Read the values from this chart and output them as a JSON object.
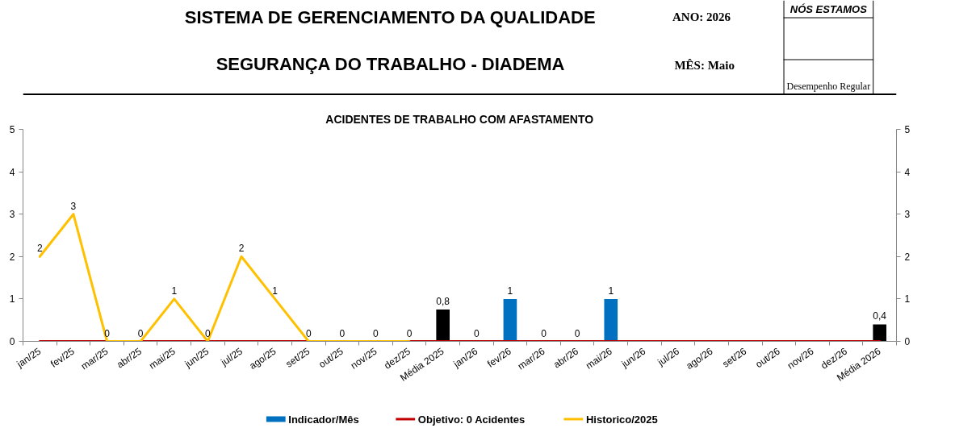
{
  "chart_data": {
    "type": "bar",
    "title": "ACIDENTES DE TRABALHO COM AFASTAMENTO",
    "annotations": [
      "SISTEMA DE GERENCIAMENTO DA QUALIDADE",
      "SEGURANÇA DO TRABALHO - DIADEMA",
      "ANO: 2026",
      "MÊS: Maio",
      "NÓS ESTAMOS",
      "Desempenho Regular"
    ],
    "categories": [
      "jan/25",
      "fev/25",
      "mar/25",
      "abr/25",
      "mai/25",
      "jun/25",
      "jul/25",
      "ago/25",
      "set/25",
      "out/25",
      "nov/25",
      "dez/25",
      "Média 2025",
      "jan/26",
      "fev/26",
      "mar/26",
      "abr/26",
      "mai/26",
      "jun/26",
      "jul/26",
      "ago/26",
      "set/26",
      "out/26",
      "nov/26",
      "dez/26",
      "Média 2026"
    ],
    "series": [
      {
        "name": "Indicador/Mês",
        "color": "#0070c0",
        "colors": [
          "#0070c0",
          "#0070c0",
          "#0070c0",
          "#0070c0",
          "#0070c0",
          "#0070c0",
          "#0070c0",
          "#0070c0",
          "#0070c0",
          "#0070c0",
          "#0070c0",
          "#0070c0",
          "#000000",
          "#0070c0",
          "#0070c0",
          "#0070c0",
          "#0070c0",
          "#0070c0",
          "#0070c0",
          "#0070c0",
          "#0070c0",
          "#0070c0",
          "#0070c0",
          "#0070c0",
          "#0070c0",
          "#000000"
        ],
        "values": [
          null,
          null,
          null,
          null,
          null,
          null,
          null,
          null,
          null,
          null,
          null,
          null,
          0.75,
          0,
          1,
          0,
          0,
          1,
          null,
          null,
          null,
          null,
          null,
          null,
          null,
          0.4
        ],
        "value_labels": [
          null,
          null,
          null,
          null,
          null,
          null,
          null,
          null,
          null,
          null,
          null,
          null,
          "0,8",
          "0",
          "1",
          "0",
          "0",
          "1",
          null,
          null,
          null,
          null,
          null,
          null,
          null,
          "0,4"
        ]
      },
      {
        "name": "Objetivo: 0 Acidentes",
        "type": "line",
        "color": "#c00000",
        "values": [
          0,
          0,
          0,
          0,
          0,
          0,
          0,
          0,
          0,
          0,
          0,
          0,
          0,
          0,
          0,
          0,
          0,
          0,
          0,
          0,
          0,
          0,
          0,
          0,
          0,
          0
        ]
      },
      {
        "name": "Historico/2025",
        "type": "line",
        "color": "#ffc000",
        "values": [
          2,
          3,
          0,
          0,
          1,
          0,
          2,
          1,
          0,
          0,
          0,
          0,
          null,
          null,
          null,
          null,
          null,
          null,
          null,
          null,
          null,
          null,
          null,
          null,
          null,
          null
        ],
        "value_labels": [
          "2",
          "3",
          "0",
          "0",
          "1",
          "0",
          "2",
          "1",
          "0",
          "0",
          "0",
          "0",
          null,
          null,
          null,
          null,
          null,
          null,
          null,
          null,
          null,
          null,
          null,
          null,
          null,
          null
        ]
      }
    ],
    "ylim": [
      0,
      5
    ],
    "yticks": [
      0,
      1,
      2,
      3,
      4,
      5
    ],
    "y2lim": [
      0,
      5
    ],
    "y2ticks": [
      0,
      1,
      2,
      3,
      4,
      5
    ],
    "legend": "bottom"
  }
}
